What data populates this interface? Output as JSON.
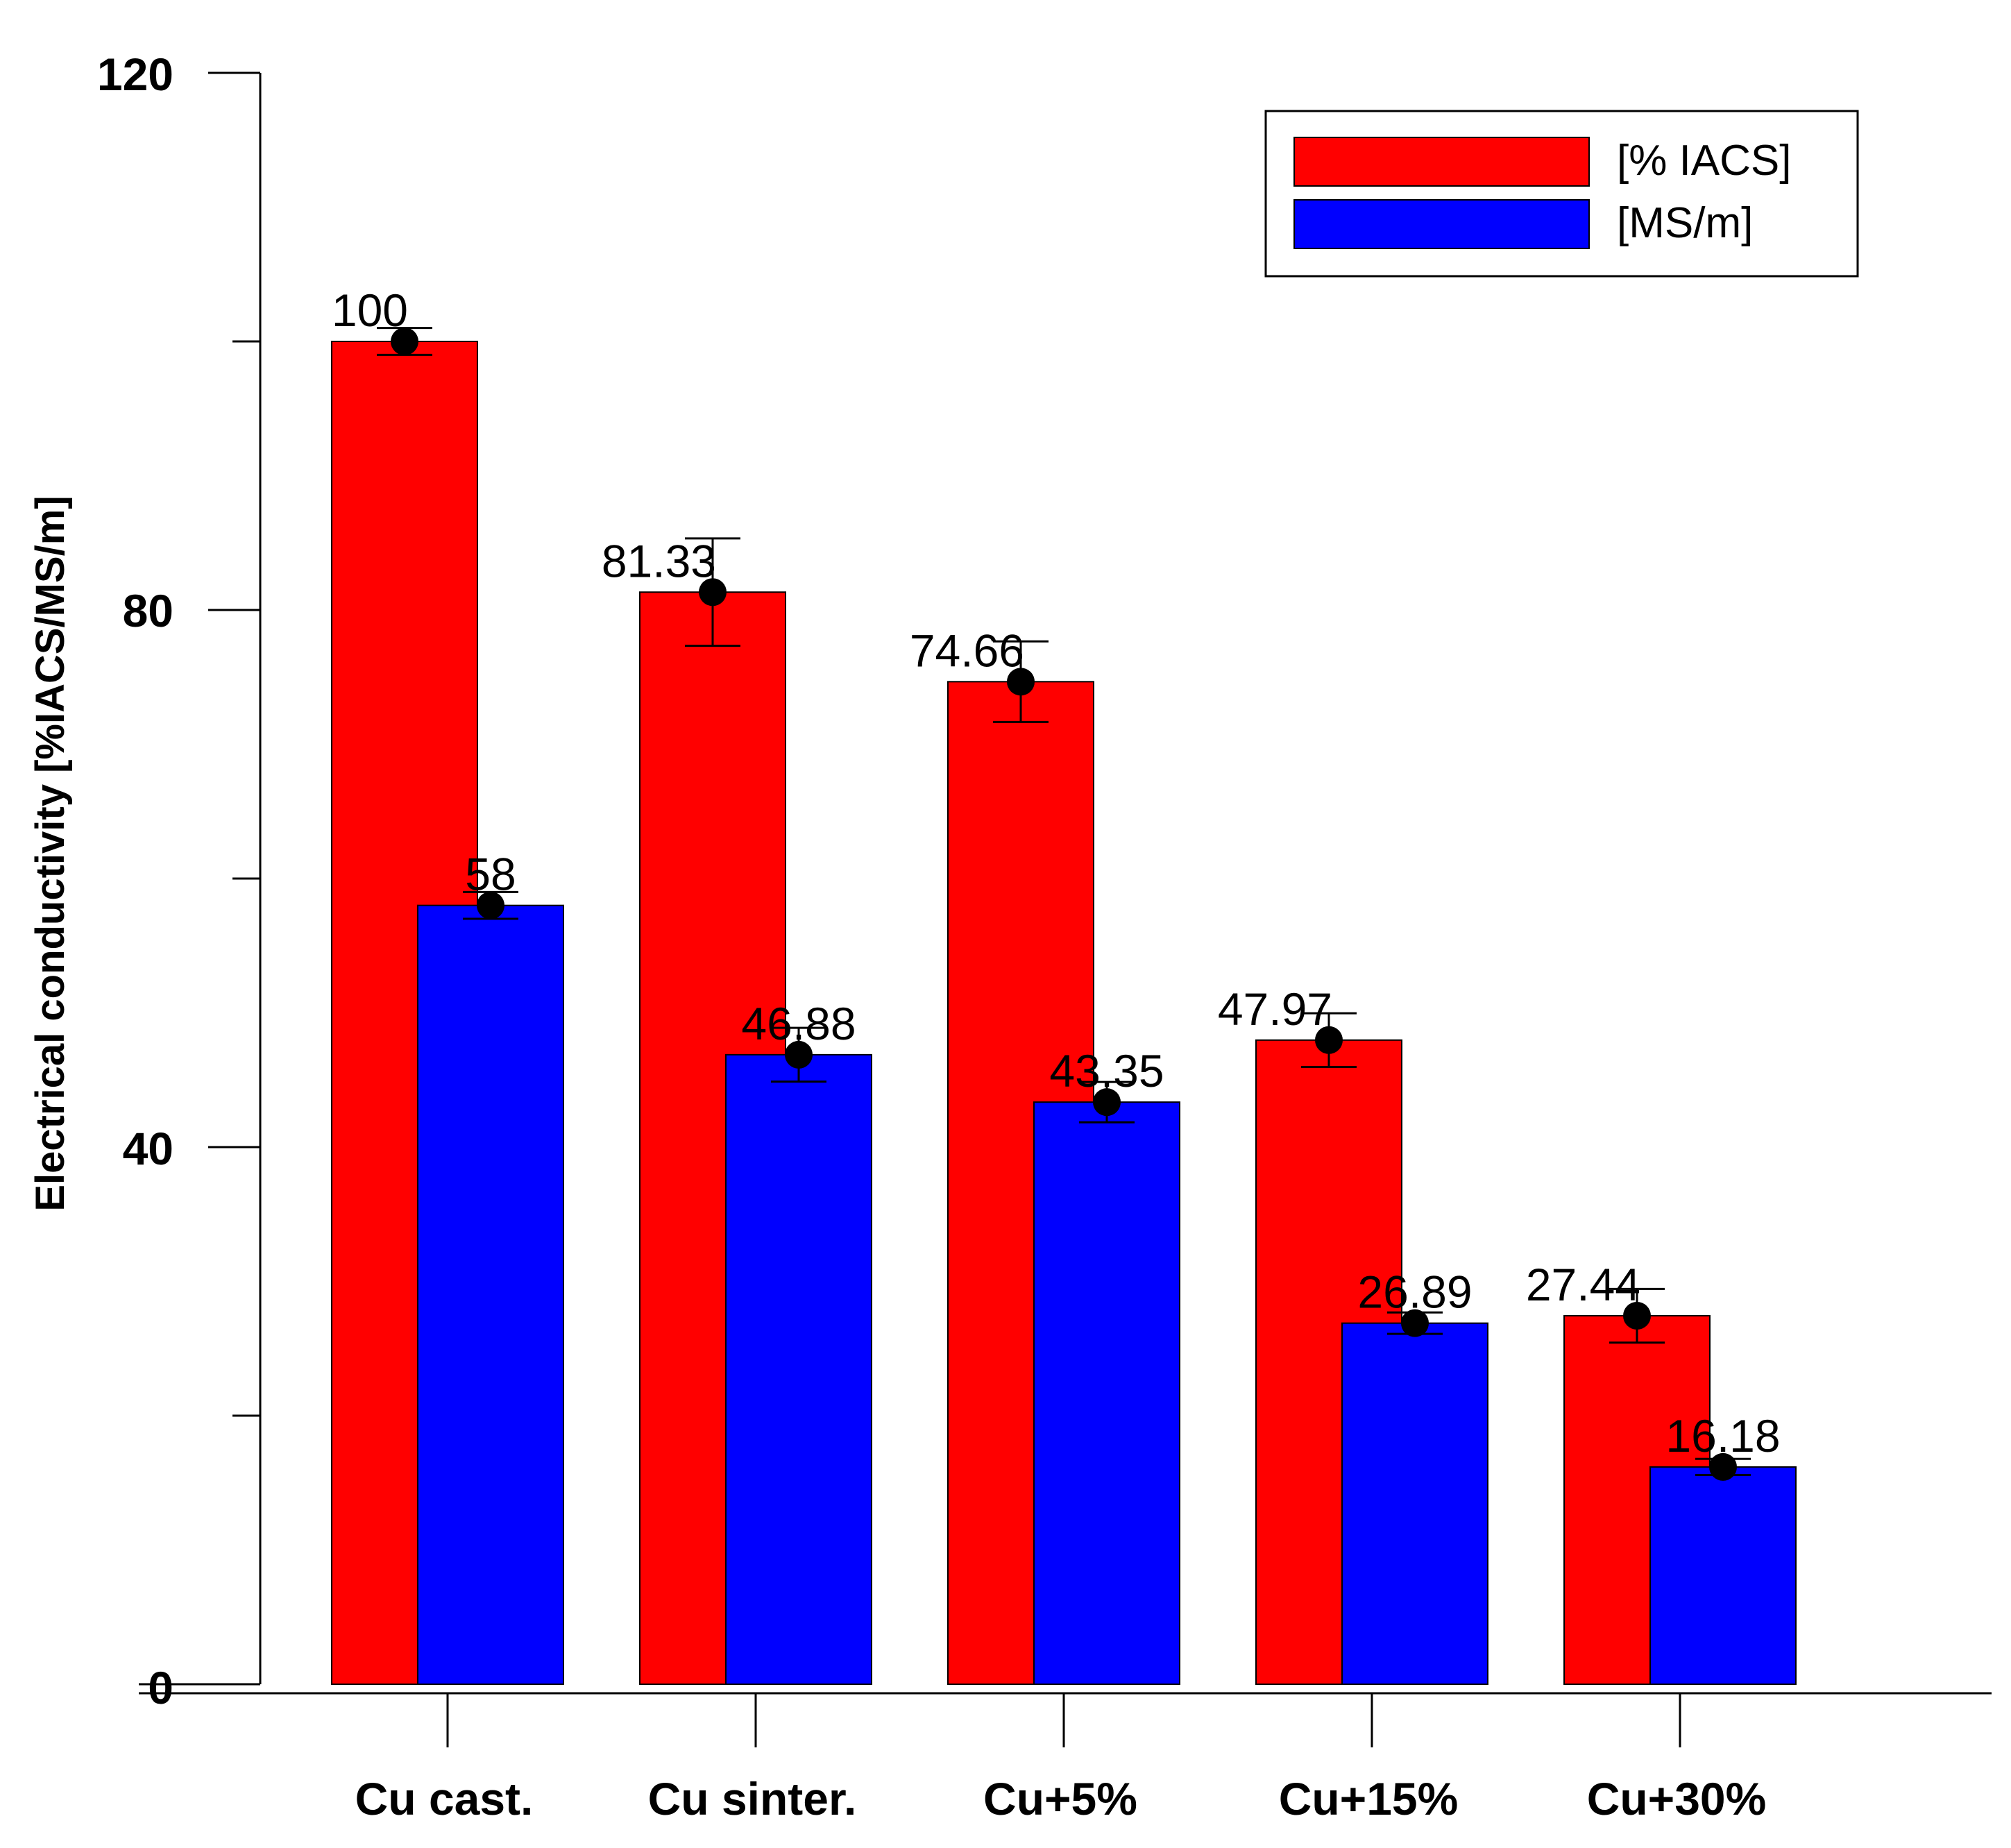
{
  "chart_data": {
    "type": "bar",
    "title": "",
    "xlabel": "",
    "ylabel": "Electrical conductivity [%IACS/MS/m]",
    "ylim": [
      0,
      120
    ],
    "yticks": [
      0,
      40,
      80,
      120
    ],
    "grid": false,
    "legend_position": "top-right",
    "categories": [
      "Cu cast.",
      "Cu sinter.",
      "Cu+5%",
      "Cu+15%",
      "Cu+30%"
    ],
    "series": [
      {
        "name": "[% IACS]",
        "color": "#ff0000",
        "values": [
          100,
          81.33,
          74.66,
          47.97,
          27.44
        ],
        "labels": [
          "100",
          "81.33",
          "74.66",
          "47.97",
          "27.44"
        ],
        "errors": [
          1,
          4,
          3,
          2,
          2
        ]
      },
      {
        "name": "[MS/m]",
        "color": "#0000ff",
        "values": [
          58,
          46.88,
          43.35,
          26.89,
          16.18
        ],
        "labels": [
          "58",
          "46.88",
          "43.35",
          "26.89",
          "16.18"
        ],
        "errors": [
          1,
          2,
          1.5,
          0.8,
          0.6
        ]
      }
    ]
  }
}
